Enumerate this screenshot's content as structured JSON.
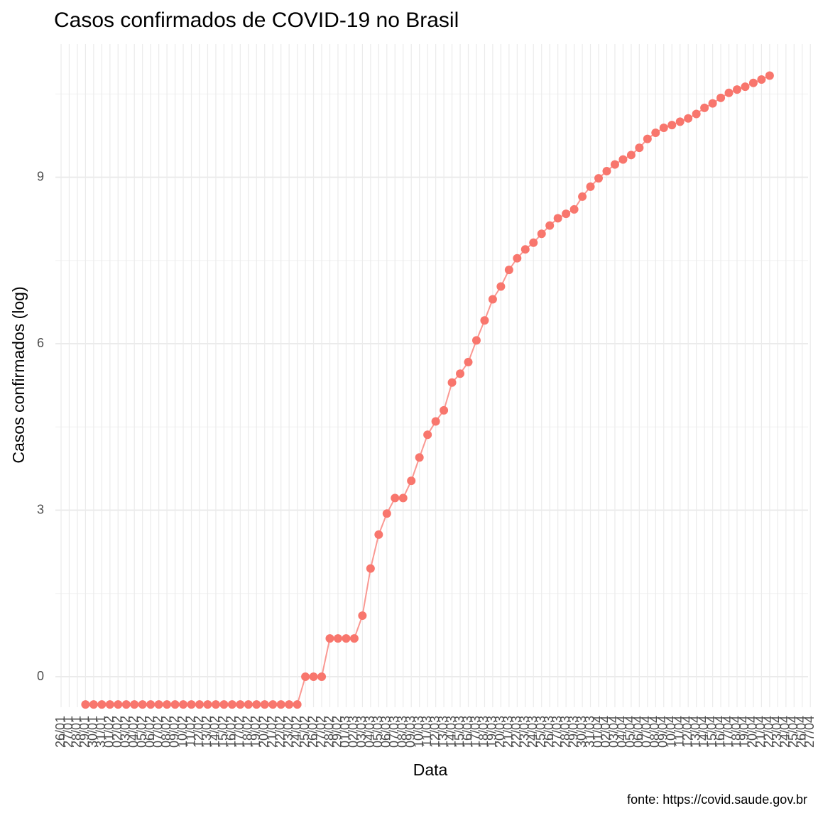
{
  "chart_data": {
    "type": "line",
    "title": "Casos confirmados de COVID-19 no Brasil",
    "x_label": "Data",
    "y_label": "Casos confirmados (log)",
    "caption": "fonte: https://covid.saude.gov.br",
    "color": "#F8766D",
    "grid": true,
    "categories": [
      "26/01",
      "27/01",
      "28/01",
      "29/01",
      "30/01",
      "31/01",
      "01/02",
      "02/02",
      "03/02",
      "04/02",
      "05/02",
      "06/02",
      "07/02",
      "08/02",
      "09/02",
      "10/02",
      "11/02",
      "12/02",
      "13/02",
      "14/02",
      "15/02",
      "16/02",
      "17/02",
      "18/02",
      "19/02",
      "20/02",
      "21/02",
      "22/02",
      "23/02",
      "24/02",
      "25/02",
      "26/02",
      "27/02",
      "28/02",
      "29/02",
      "01/03",
      "02/03",
      "03/03",
      "04/03",
      "05/03",
      "06/03",
      "07/03",
      "08/03",
      "09/03",
      "10/03",
      "11/03",
      "12/03",
      "13/03",
      "14/03",
      "15/03",
      "16/03",
      "17/03",
      "18/03",
      "19/03",
      "20/03",
      "21/03",
      "22/03",
      "23/03",
      "24/03",
      "25/03",
      "26/03",
      "27/03",
      "28/03",
      "29/03",
      "30/03",
      "31/03",
      "01/04",
      "02/04",
      "03/04",
      "04/04",
      "05/04",
      "06/04",
      "07/04",
      "08/04",
      "09/04",
      "10/04",
      "11/04",
      "12/04",
      "13/04",
      "14/04",
      "15/04",
      "16/04",
      "17/04",
      "18/04",
      "19/04",
      "20/04",
      "21/04",
      "22/04",
      "23/04",
      "24/04",
      "25/04",
      "26/04",
      "27/04"
    ],
    "values": [
      null,
      null,
      null,
      -0.5,
      -0.5,
      -0.5,
      -0.5,
      -0.5,
      -0.5,
      -0.5,
      -0.5,
      -0.5,
      -0.5,
      -0.5,
      -0.5,
      -0.5,
      -0.5,
      -0.5,
      -0.5,
      -0.5,
      -0.5,
      -0.5,
      -0.5,
      -0.5,
      -0.5,
      -0.5,
      -0.5,
      -0.5,
      -0.5,
      -0.5,
      0,
      0,
      0,
      0.69,
      0.69,
      0.69,
      0.69,
      1.1,
      1.95,
      2.56,
      2.94,
      3.22,
      3.22,
      3.53,
      3.95,
      4.36,
      4.6,
      4.8,
      5.3,
      5.46,
      5.67,
      6.06,
      6.42,
      6.8,
      7.03,
      7.33,
      7.54,
      7.7,
      7.82,
      7.98,
      8.13,
      8.26,
      8.34,
      8.42,
      8.65,
      8.83,
      8.98,
      9.11,
      9.23,
      9.32,
      9.4,
      9.53,
      9.69,
      9.8,
      9.89,
      9.94,
      10,
      10.06,
      10.14,
      10.25,
      10.33,
      10.43,
      10.52,
      10.58,
      10.63,
      10.7,
      10.76,
      10.83,
      null,
      null,
      null,
      null,
      null
    ],
    "ylim": [
      -0.55,
      11.4
    ],
    "yticks": [
      0,
      3,
      6,
      9
    ]
  }
}
